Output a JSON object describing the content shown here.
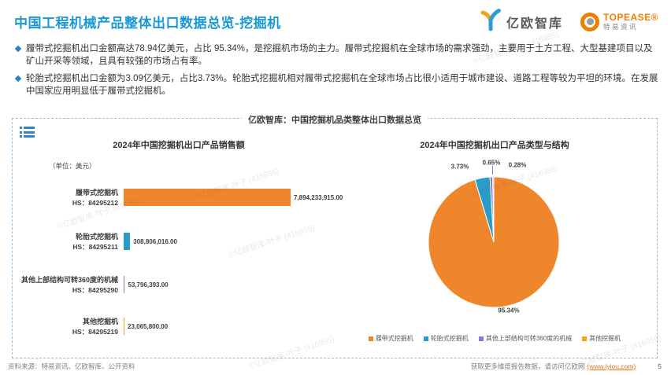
{
  "page": {
    "title": "中国工程机械产品整体出口数据总览-挖掘机",
    "page_number": "5"
  },
  "header": {
    "logo_yiou": {
      "name": "亿欧智库"
    },
    "logo_topease": {
      "brand": "TOPEASE®",
      "sub": "特易资讯"
    }
  },
  "bullets": [
    {
      "text": "履带式挖掘机出口金额高达78.94亿美元，占比 95.34%，是挖掘机市场的主力。履带式挖掘机在全球市场的需求强劲，主要用于土方工程、大型基建项目以及矿山开采等领域，且具有较强的市场占有率。"
    },
    {
      "text": "轮胎式挖掘机出口金额为3.09亿美元，占比3.73%。轮胎式挖掘机相对履带式挖掘机在全球市场占比很小适用于城市建设、道路工程等较为平坦的环境。在发展中国家应用明显低于履带式挖掘机。"
    }
  ],
  "panel": {
    "header": "亿欧智库：中国挖掘机品类整体出口数据总览"
  },
  "chart_data": [
    {
      "type": "bar",
      "orientation": "horizontal",
      "title": "2024年中国挖掘机出口产品销售额",
      "unit_label": "（单位：美元）",
      "categories": [
        "履带式挖掘机",
        "轮胎式挖掘机",
        "其他上部结构可转360度的机械",
        "其他挖掘机"
      ],
      "hs_codes": [
        "HS：84295212",
        "HS：84295211",
        "HS：84295290",
        "HS：84295219"
      ],
      "values": [
        7894233915.0,
        308806016.0,
        53796393.0,
        23065800.0
      ],
      "value_labels": [
        "7,894,233,915.00",
        "308,806,016.00",
        "53,796,393.00",
        "23,065,800.00"
      ],
      "colors": [
        "#F0862B",
        "#2A9CC9",
        "#8878D8",
        "#F9A11B"
      ],
      "xlim": [
        0,
        7894233915
      ],
      "grid": false
    },
    {
      "type": "pie",
      "title": "2024年中国挖掘机出口产品类型与结构",
      "slices": [
        {
          "name": "履带式挖掘机",
          "value": 95.34,
          "pct_label": "95.34%",
          "color": "#F0862B"
        },
        {
          "name": "轮胎式挖掘机",
          "value": 3.73,
          "pct_label": "3.73%",
          "color": "#2A9CC9"
        },
        {
          "name": "其他上部结构可转360度的机械",
          "value": 0.65,
          "pct_label": "0.65%",
          "color": "#8878D8"
        },
        {
          "name": "其他挖掘机",
          "value": 0.28,
          "pct_label": "0.28%",
          "color": "#F9A11B"
        }
      ],
      "legend_position": "bottom"
    }
  ],
  "footer": {
    "source": "资料来源：特易资讯、亿欧智库、公开资料",
    "cta": "获取更多维度报告数据，请访问亿欧网",
    "link": "(www.iyiou.com)"
  },
  "watermark": "©亿欧智库-叶子 (416955)",
  "colors": {
    "title_blue": "#1899D5",
    "bullet_blue": "#2E7FC1",
    "panel_border": "#8FC0E4",
    "link_orange": "#E8761A",
    "topease_orange": "#F07D00"
  }
}
